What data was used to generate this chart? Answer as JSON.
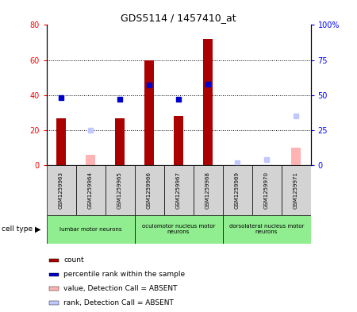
{
  "title": "GDS5114 / 1457410_at",
  "samples": [
    "GSM1259963",
    "GSM1259964",
    "GSM1259965",
    "GSM1259966",
    "GSM1259967",
    "GSM1259968",
    "GSM1259969",
    "GSM1259970",
    "GSM1259971"
  ],
  "count_values": [
    27,
    0,
    27,
    60,
    28,
    72,
    0,
    0,
    0
  ],
  "count_absent": [
    0,
    6,
    0,
    0,
    0,
    0,
    0,
    0,
    10
  ],
  "rank_values": [
    48,
    0,
    47,
    57,
    47,
    58,
    0,
    0,
    0
  ],
  "rank_absent": [
    0,
    25,
    0,
    0,
    0,
    0,
    2,
    4,
    35
  ],
  "count_color": "#aa0000",
  "count_absent_color": "#ffb3b3",
  "rank_color": "#0000cc",
  "rank_absent_color": "#c0c8ff",
  "ylim_left": [
    0,
    80
  ],
  "ylim_right": [
    0,
    100
  ],
  "yticks_left": [
    0,
    20,
    40,
    60,
    80
  ],
  "ytick_labels_left": [
    "0",
    "20",
    "40",
    "60",
    "80"
  ],
  "yticks_right": [
    0,
    25,
    50,
    75,
    100
  ],
  "ytick_labels_right": [
    "0",
    "25",
    "50",
    "75",
    "100%"
  ],
  "cell_types": [
    {
      "label": "lumbar motor neurons",
      "start": 0,
      "end": 3
    },
    {
      "label": "oculomotor nucleus motor\nneurons",
      "start": 3,
      "end": 6
    },
    {
      "label": "dorsolateral nucleus motor\nneurons",
      "start": 6,
      "end": 9
    }
  ],
  "cell_type_color": "#90ee90",
  "sample_bg_color": "#d3d3d3",
  "grid_color": "black",
  "bar_width": 0.35,
  "legend_items": [
    {
      "label": "count",
      "color": "#aa0000"
    },
    {
      "label": "percentile rank within the sample",
      "color": "#0000cc"
    },
    {
      "label": "value, Detection Call = ABSENT",
      "color": "#ffb3b3"
    },
    {
      "label": "rank, Detection Call = ABSENT",
      "color": "#c0c8ff"
    }
  ]
}
